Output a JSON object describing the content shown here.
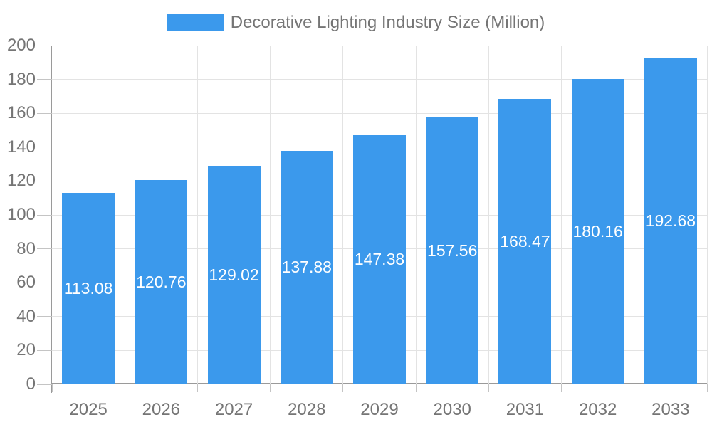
{
  "legend": {
    "label": "Decorative Lighting Industry Size (Million)"
  },
  "chart_data": {
    "type": "bar",
    "title": "Decorative Lighting Industry Size (Million)",
    "series_name": "Decorative Lighting Industry Size (Million)",
    "categories": [
      "2025",
      "2026",
      "2027",
      "2028",
      "2029",
      "2030",
      "2031",
      "2032",
      "2033"
    ],
    "values": [
      113.08,
      120.76,
      129.02,
      137.88,
      147.38,
      157.56,
      168.47,
      180.16,
      192.68
    ],
    "value_labels": [
      "113.08",
      "120.76",
      "129.02",
      "137.88",
      "147.38",
      "157.56",
      "168.47",
      "180.16",
      "192.68"
    ],
    "xlabel": "",
    "ylabel": "",
    "ylim": [
      0,
      200
    ],
    "yticks": [
      0,
      20,
      40,
      60,
      80,
      100,
      120,
      140,
      160,
      180,
      200
    ],
    "grid": "horizontal and vertical light gray gridlines",
    "legend_position": "top-center",
    "value_label_position": "inside-center"
  },
  "colors": {
    "bar": "#3b99ec",
    "grid_line": "#e3e3e3",
    "axis_line": "#9a9a9a",
    "tick_line": "#c4c4c4",
    "axis_text": "#757575",
    "value_text": "#ffffff",
    "background": "#ffffff"
  }
}
